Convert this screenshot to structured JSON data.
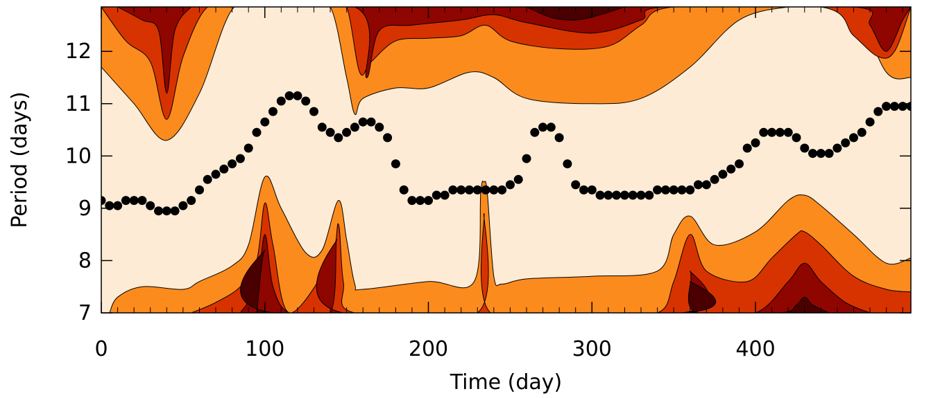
{
  "chart_data": {
    "type": "heatmap",
    "subtype": "contour-with-scatter",
    "xlabel": "Time (day)",
    "ylabel": "Period (days)",
    "xlim": [
      0,
      495
    ],
    "ylim": [
      7,
      12.85
    ],
    "x_ticks": [
      0,
      100,
      200,
      300,
      400
    ],
    "y_ticks": [
      7,
      8,
      9,
      10,
      11,
      12
    ],
    "grid": false,
    "colors": {
      "level0": "#fdebd5",
      "level1": "#fc8b1e",
      "level2": "#d73300",
      "level3": "#8f0500",
      "level4": "#4a0000",
      "marker": "#000000",
      "axis": "#000000"
    },
    "contours": {
      "top_level1_lower_edge": {
        "x": [
          0,
          20,
          40,
          60,
          80,
          100,
          125,
          140,
          150,
          155,
          160,
          180,
          200,
          225,
          240,
          260,
          300,
          330,
          360,
          390,
          420,
          440,
          460,
          480,
          495
        ],
        "y": [
          11.7,
          11.0,
          10.3,
          11.2,
          12.8,
          12.85,
          12.85,
          12.85,
          11.5,
          10.8,
          11.1,
          11.3,
          11.3,
          11.6,
          11.5,
          11.1,
          11.0,
          11.1,
          11.7,
          12.6,
          12.85,
          12.85,
          12.85,
          11.6,
          11.5
        ]
      },
      "top_level2_lower_edge": {
        "x": [
          0,
          15,
          30,
          40,
          50,
          65,
          85,
          140,
          150,
          158,
          165,
          180,
          200,
          220,
          235,
          250,
          280,
          310,
          330,
          350,
          440,
          460,
          475,
          485,
          495
        ],
        "y": [
          12.85,
          12.2,
          11.8,
          10.7,
          11.9,
          12.85,
          12.85,
          12.85,
          12.85,
          11.6,
          11.8,
          12.2,
          12.25,
          12.3,
          12.5,
          12.2,
          12.05,
          12.1,
          12.5,
          12.85,
          12.85,
          12.3,
          11.9,
          12.0,
          12.85
        ]
      },
      "top_level3_lower_edge": {
        "x": [
          10,
          25,
          35,
          40,
          45,
          55,
          60,
          155,
          162,
          170,
          190,
          220,
          240,
          260,
          300,
          330,
          345,
          460,
          470,
          480,
          490,
          495
        ],
        "y": [
          12.85,
          12.6,
          12.4,
          11.2,
          12.4,
          12.85,
          12.85,
          12.85,
          11.5,
          12.4,
          12.5,
          12.6,
          12.7,
          12.55,
          12.35,
          12.6,
          12.85,
          12.85,
          12.5,
          12.0,
          12.6,
          12.85
        ]
      },
      "top_level4_lower_edge": {
        "x": [
          260,
          275,
          290,
          305,
          320
        ],
        "y": [
          12.85,
          12.65,
          12.6,
          12.7,
          12.85
        ]
      },
      "bottom_level1_upper_edge": {
        "x": [
          5,
          10,
          25,
          50,
          60,
          80,
          90,
          100,
          110,
          125,
          135,
          145,
          150,
          155,
          160,
          200,
          228,
          232,
          234,
          236,
          240,
          245,
          260,
          300,
          340,
          350,
          360,
          375,
          400,
          420,
          430,
          440,
          460,
          480,
          495
        ],
        "y": [
          7.0,
          7.3,
          7.5,
          7.45,
          7.6,
          7.9,
          8.3,
          9.6,
          9.0,
          8.15,
          8.2,
          9.15,
          8.4,
          7.55,
          7.45,
          7.6,
          7.6,
          9.3,
          9.5,
          9.3,
          7.7,
          7.55,
          7.65,
          7.7,
          7.8,
          8.5,
          8.85,
          8.3,
          8.55,
          9.15,
          9.25,
          9.05,
          8.5,
          7.95,
          8.05
        ]
      },
      "bottom_level2_upper_edge": {
        "x": [
          55,
          70,
          85,
          95,
          100,
          105,
          115,
          140,
          145,
          148,
          155,
          230,
          234,
          238,
          300,
          340,
          350,
          360,
          370,
          395,
          410,
          425,
          430,
          440,
          460,
          480,
          495
        ],
        "y": [
          7.0,
          7.2,
          7.5,
          8.0,
          9.1,
          8.3,
          7.0,
          8.0,
          8.7,
          7.6,
          7.0,
          7.0,
          8.9,
          7.0,
          7.0,
          7.0,
          7.6,
          8.5,
          7.8,
          7.6,
          8.05,
          8.5,
          8.55,
          8.3,
          7.7,
          7.45,
          7.4
        ]
      },
      "bottom_level3_upper_edge": {
        "x": [
          85,
          95,
          100,
          105,
          115,
          140,
          144,
          148,
          355,
          360,
          365,
          400,
          420,
          430,
          440,
          455,
          470
        ],
        "y": [
          7.0,
          7.5,
          8.5,
          7.5,
          7.0,
          7.0,
          8.4,
          7.0,
          7.0,
          7.8,
          7.0,
          7.0,
          7.6,
          7.95,
          7.6,
          7.2,
          7.0
        ]
      },
      "bottom_level4_upper_edge": {
        "x": [
          95,
          100,
          105,
          356,
          360,
          364,
          415,
          425,
          430,
          435,
          445
        ],
        "y": [
          7.0,
          8.2,
          7.0,
          7.0,
          7.6,
          7.0,
          7.0,
          7.15,
          7.3,
          7.15,
          7.0
        ]
      }
    },
    "series": [
      {
        "type": "scatter",
        "x": [
          0,
          5,
          10,
          15,
          20,
          25,
          30,
          35,
          40,
          45,
          50,
          55,
          60,
          65,
          70,
          75,
          80,
          85,
          90,
          95,
          100,
          105,
          110,
          115,
          120,
          125,
          130,
          135,
          140,
          145,
          150,
          155,
          160,
          165,
          170,
          175,
          180,
          185,
          190,
          195,
          200,
          205,
          210,
          215,
          220,
          225,
          230,
          235,
          240,
          245,
          250,
          255,
          260,
          265,
          270,
          275,
          280,
          285,
          290,
          295,
          300,
          305,
          310,
          315,
          320,
          325,
          330,
          335,
          340,
          345,
          350,
          355,
          360,
          365,
          370,
          375,
          380,
          385,
          390,
          395,
          400,
          405,
          410,
          415,
          420,
          425,
          430,
          435,
          440,
          445,
          450,
          455,
          460,
          465,
          470,
          475,
          480,
          485,
          490,
          495
        ],
        "y": [
          9.15,
          9.05,
          9.05,
          9.15,
          9.15,
          9.15,
          9.05,
          8.95,
          8.95,
          8.95,
          9.05,
          9.15,
          9.35,
          9.55,
          9.65,
          9.75,
          9.85,
          9.95,
          10.15,
          10.45,
          10.65,
          10.85,
          11.05,
          11.15,
          11.15,
          11.05,
          10.85,
          10.55,
          10.45,
          10.35,
          10.45,
          10.55,
          10.65,
          10.65,
          10.55,
          10.35,
          9.85,
          9.35,
          9.15,
          9.15,
          9.15,
          9.25,
          9.25,
          9.35,
          9.35,
          9.35,
          9.35,
          9.35,
          9.35,
          9.35,
          9.45,
          9.55,
          9.95,
          10.45,
          10.55,
          10.55,
          10.35,
          9.85,
          9.45,
          9.35,
          9.35,
          9.25,
          9.25,
          9.25,
          9.25,
          9.25,
          9.25,
          9.25,
          9.35,
          9.35,
          9.35,
          9.35,
          9.35,
          9.45,
          9.45,
          9.55,
          9.65,
          9.75,
          9.85,
          10.15,
          10.25,
          10.45,
          10.45,
          10.45,
          10.45,
          10.35,
          10.15,
          10.05,
          10.05,
          10.05,
          10.15,
          10.25,
          10.35,
          10.45,
          10.65,
          10.85,
          10.95,
          10.95,
          10.95,
          10.95
        ]
      }
    ]
  }
}
